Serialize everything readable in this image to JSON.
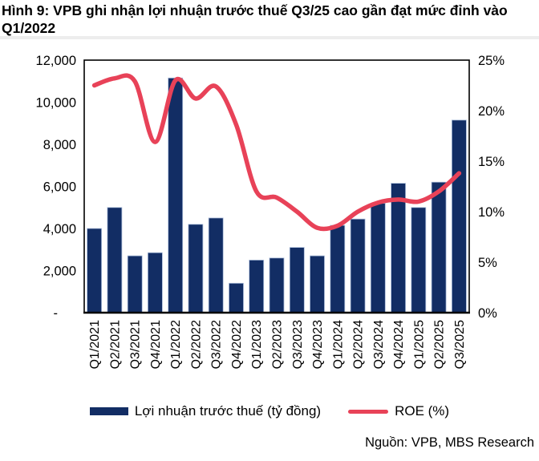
{
  "title": "Hình 9: VPB ghi nhận lợi nhuận trước thuế Q3/25 cao gần đạt mức đỉnh vào Q1/2022",
  "source": "Nguồn: VPB, MBS Research",
  "colors": {
    "bar": "#122D64",
    "bar_edge": "#A8BAD8",
    "line": "#E84258",
    "axis": "#000000",
    "divider": "#EDEDED"
  },
  "legend": {
    "bar_label": "Lợi nhuận trước thuế (tỷ đồng)",
    "line_label": "ROE (%)"
  },
  "chart_data": {
    "type": "bar+line",
    "categories": [
      "Q1/2021",
      "Q2/2021",
      "Q3/2021",
      "Q4/2021",
      "Q1/2022",
      "Q2/2022",
      "Q3/2022",
      "Q4/2022",
      "Q1/2023",
      "Q2/2023",
      "Q3/2023",
      "Q4/2023",
      "Q1/2024",
      "Q2/2024",
      "Q3/2024",
      "Q4/2024",
      "Q1/2025",
      "Q2/2025",
      "Q3/2025"
    ],
    "series": [
      {
        "name": "Lợi nhuận trước thuế (tỷ đồng)",
        "type": "bar",
        "axis": "left",
        "color": "#122D64",
        "values": [
          4000,
          5000,
          2700,
          2850,
          11150,
          4200,
          4500,
          1400,
          2500,
          2600,
          3100,
          2700,
          4150,
          4450,
          5200,
          6150,
          5000,
          6200,
          9150
        ]
      },
      {
        "name": "ROE (%)",
        "type": "line",
        "axis": "right",
        "color": "#E84258",
        "values": [
          22.5,
          23.2,
          22.9,
          16.9,
          23.0,
          21.2,
          22.4,
          18.6,
          12.0,
          11.4,
          10.0,
          8.4,
          8.6,
          10.0,
          10.9,
          11.2,
          11.0,
          12.0,
          13.8
        ]
      }
    ],
    "left_axis": {
      "min": 0,
      "max": 12000,
      "step": 2000,
      "tick_labels": [
        "12,000",
        "10,000",
        "8,000",
        "6,000",
        "4,000",
        "2,000",
        "-"
      ]
    },
    "right_axis": {
      "min": 0,
      "max": 25,
      "step": 5,
      "tick_labels": [
        "25%",
        "20%",
        "15%",
        "10%",
        "5%",
        "0%"
      ]
    },
    "grid": false,
    "legend_position": "bottom"
  }
}
